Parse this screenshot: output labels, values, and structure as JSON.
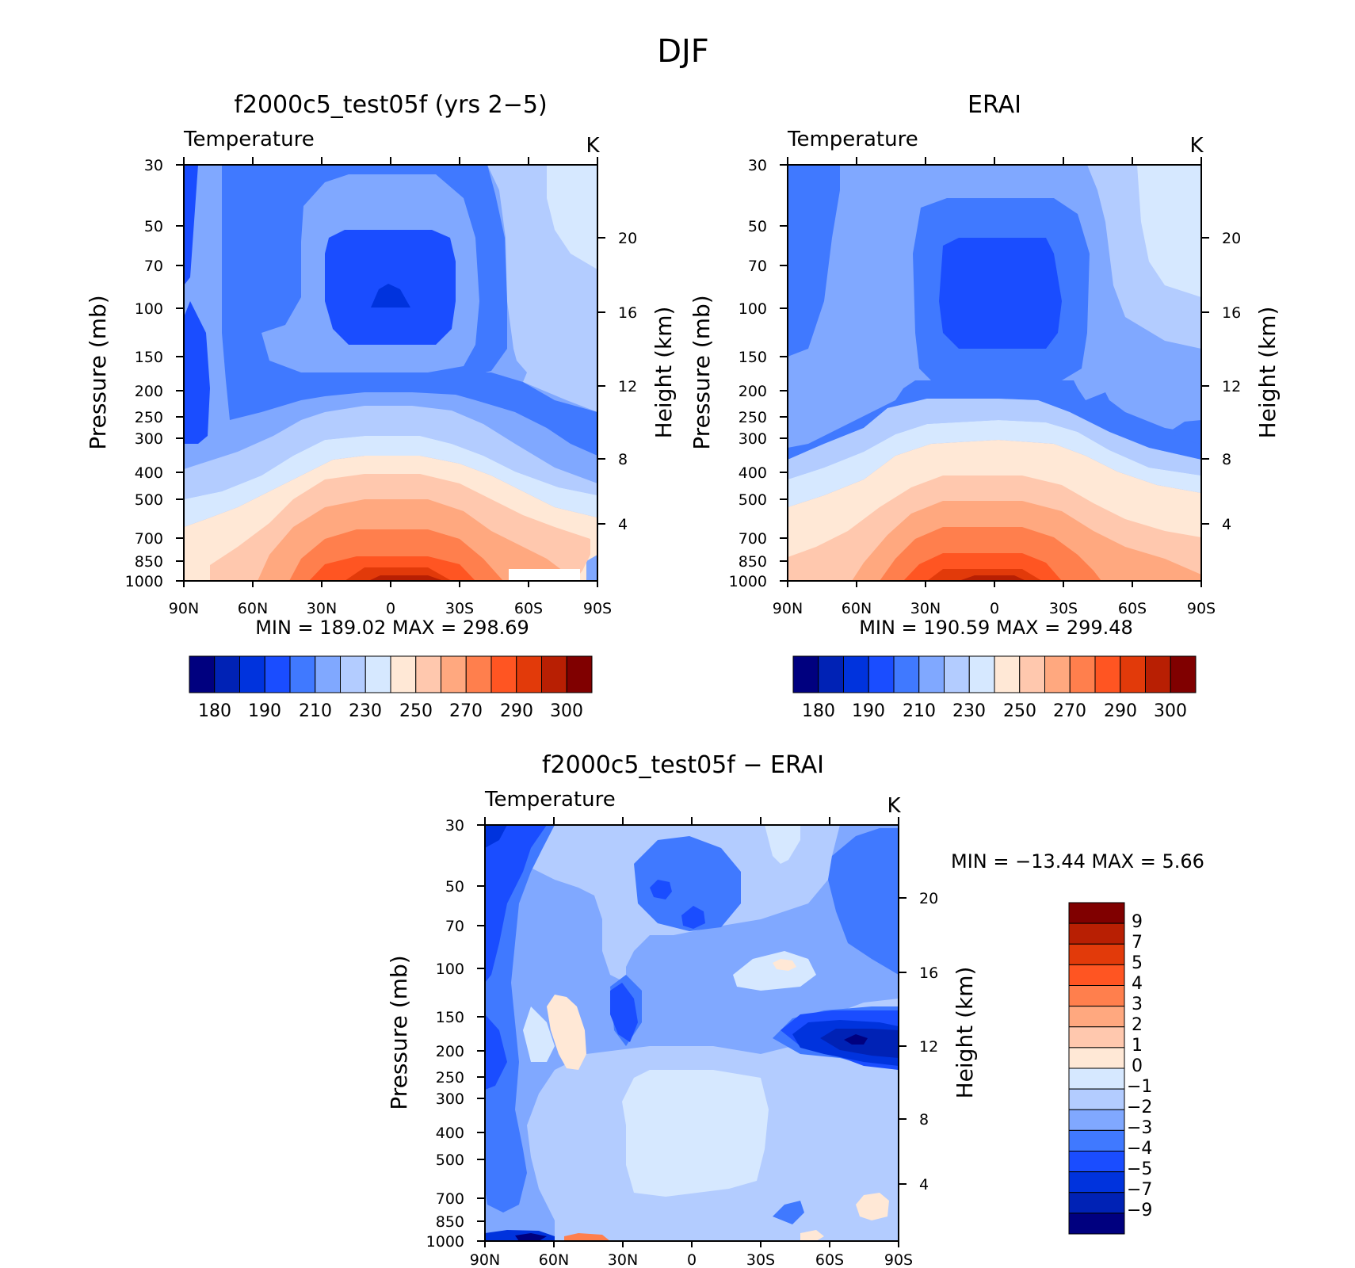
{
  "figure": {
    "title": "DJF"
  },
  "chart_data": [
    {
      "type": "heatmap",
      "title": "f2000c5_test05f (yrs 2−5)",
      "left_label": "Temperature",
      "right_label": "K",
      "ylabel": "Pressure (mb)",
      "ylabel_right": "Height (km)",
      "xticks": [
        "90N",
        "60N",
        "30N",
        "0",
        "30S",
        "60S",
        "90S"
      ],
      "yticks": [
        "30",
        "50",
        "70",
        "100",
        "150",
        "200",
        "250",
        "300",
        "400",
        "500",
        "700",
        "850",
        "1000"
      ],
      "height_ticks": [
        "20",
        "16",
        "12",
        "8",
        "4"
      ],
      "stats": "MIN =  189.02   MAX =  298.69",
      "colorbar": {
        "orientation": "horizontal",
        "tick_labels": [
          "180",
          "190",
          "210",
          "230",
          "250",
          "270",
          "290",
          "300"
        ],
        "colors": [
          "#00007f",
          "#0022b5",
          "#0033dd",
          "#1a4dff",
          "#4079ff",
          "#80a8ff",
          "#b3ccff",
          "#d6e8ff",
          "#ffe8d6",
          "#ffc8ae",
          "#ffa87f",
          "#ff7f4d",
          "#ff5522",
          "#e23a0a",
          "#b81f03",
          "#800000"
        ]
      }
    },
    {
      "type": "heatmap",
      "title": "ERAI",
      "left_label": "Temperature",
      "right_label": "K",
      "ylabel": "Pressure (mb)",
      "ylabel_right": "Height (km)",
      "xticks": [
        "90N",
        "60N",
        "30N",
        "0",
        "30S",
        "60S",
        "90S"
      ],
      "yticks": [
        "30",
        "50",
        "70",
        "100",
        "150",
        "200",
        "250",
        "300",
        "400",
        "500",
        "700",
        "850",
        "1000"
      ],
      "height_ticks": [
        "20",
        "16",
        "12",
        "8",
        "4"
      ],
      "stats": "MIN =  190.59   MAX =  299.48",
      "colorbar": {
        "orientation": "horizontal",
        "tick_labels": [
          "180",
          "190",
          "210",
          "230",
          "250",
          "270",
          "290",
          "300"
        ],
        "colors": [
          "#00007f",
          "#0022b5",
          "#0033dd",
          "#1a4dff",
          "#4079ff",
          "#80a8ff",
          "#b3ccff",
          "#d6e8ff",
          "#ffe8d6",
          "#ffc8ae",
          "#ffa87f",
          "#ff7f4d",
          "#ff5522",
          "#e23a0a",
          "#b81f03",
          "#800000"
        ]
      }
    },
    {
      "type": "heatmap",
      "title": "f2000c5_test05f − ERAI",
      "left_label": "Temperature",
      "right_label": "K",
      "ylabel": "Pressure (mb)",
      "ylabel_right": "Height (km)",
      "xticks": [
        "90N",
        "60N",
        "30N",
        "0",
        "30S",
        "60S",
        "90S"
      ],
      "yticks": [
        "30",
        "50",
        "70",
        "100",
        "150",
        "200",
        "250",
        "300",
        "400",
        "500",
        "700",
        "850",
        "1000"
      ],
      "height_ticks": [
        "20",
        "16",
        "12",
        "8",
        "4"
      ],
      "stats": "MIN = −13.44   MAX =    5.66",
      "colorbar": {
        "orientation": "vertical",
        "tick_labels": [
          "9",
          "7",
          "5",
          "4",
          "3",
          "2",
          "1",
          "0",
          "−1",
          "−2",
          "−3",
          "−4",
          "−5",
          "−7",
          "−9"
        ],
        "colors": [
          "#800000",
          "#b81f03",
          "#e23a0a",
          "#ff5522",
          "#ff7f4d",
          "#ffa87f",
          "#ffc8ae",
          "#ffe8d6",
          "#d6e8ff",
          "#b3ccff",
          "#80a8ff",
          "#4079ff",
          "#1a4dff",
          "#0033dd",
          "#0022b5",
          "#00007f"
        ]
      }
    }
  ]
}
